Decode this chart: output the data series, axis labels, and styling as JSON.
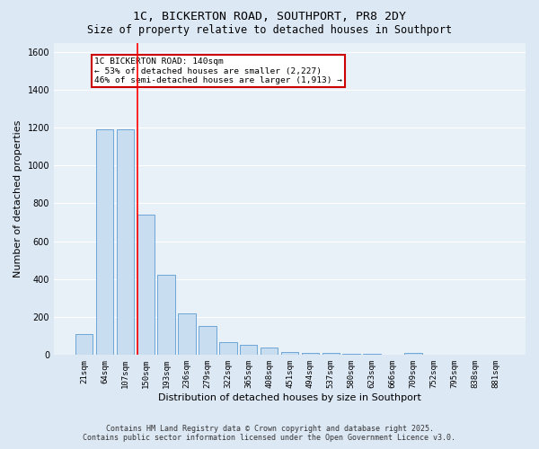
{
  "title_line1": "1C, BICKERTON ROAD, SOUTHPORT, PR8 2DY",
  "title_line2": "Size of property relative to detached houses in Southport",
  "bar_labels": [
    "21sqm",
    "64sqm",
    "107sqm",
    "150sqm",
    "193sqm",
    "236sqm",
    "279sqm",
    "322sqm",
    "365sqm",
    "408sqm",
    "451sqm",
    "494sqm",
    "537sqm",
    "580sqm",
    "623sqm",
    "666sqm",
    "709sqm",
    "752sqm",
    "795sqm",
    "838sqm",
    "881sqm"
  ],
  "bar_values": [
    110,
    1190,
    1190,
    740,
    420,
    220,
    150,
    65,
    50,
    35,
    15,
    10,
    7,
    5,
    3,
    1,
    10,
    0,
    0,
    0,
    0
  ],
  "bar_color": "#c9ddf0",
  "bar_edge_color": "#5b9bd5",
  "xlabel": "Distribution of detached houses by size in Southport",
  "ylabel": "Number of detached properties",
  "ylim": [
    0,
    1650
  ],
  "yticks": [
    0,
    200,
    400,
    600,
    800,
    1000,
    1200,
    1400,
    1600
  ],
  "red_line_index": 2.575,
  "annotation_text": "1C BICKERTON ROAD: 140sqm\n← 53% of detached houses are smaller (2,227)\n46% of semi-detached houses are larger (1,913) →",
  "annotation_box_color": "#ffffff",
  "annotation_box_edge": "#cc0000",
  "footer_line1": "Contains HM Land Registry data © Crown copyright and database right 2025.",
  "footer_line2": "Contains public sector information licensed under the Open Government Licence v3.0.",
  "bg_color": "#dde8f5",
  "plot_bg_color": "#e8f0f8",
  "grid_color": "#ffffff",
  "title_fontsize": 9.5,
  "subtitle_fontsize": 8.5,
  "tick_fontsize": 6.5,
  "axis_label_fontsize": 8,
  "annotation_fontsize": 6.8,
  "footer_fontsize": 6.0
}
